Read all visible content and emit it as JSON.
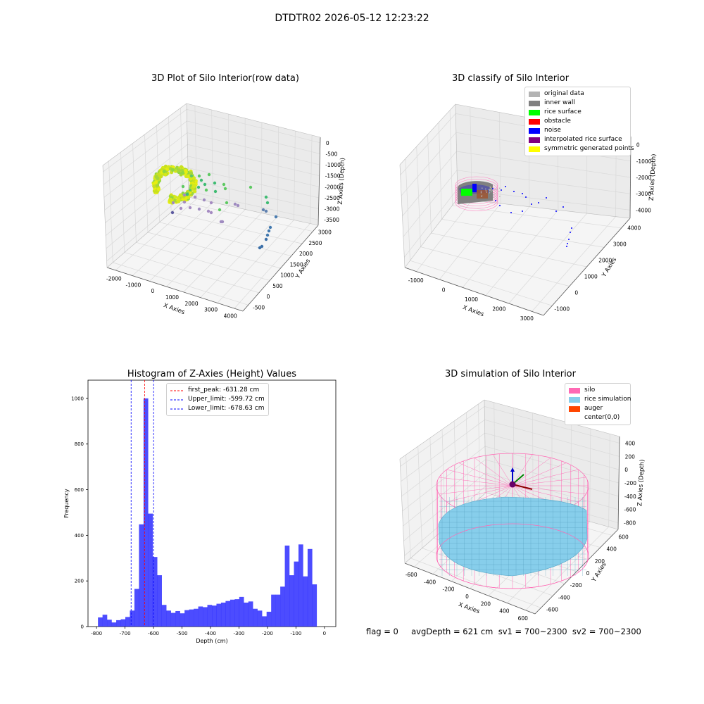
{
  "suptitle": "DTDTR02 2026-05-12 12:23:22",
  "footer": "flag = 0     avgDepth = 621 cm  sv1 = 700~2300  sv2 = 700~2300",
  "chart_data": [
    {
      "type": "scatter",
      "title": "3D Plot of Silo Interior(row data)",
      "xlabel": "X Axies",
      "ylabel": "Y Axies",
      "zlabel": "Z Axies (Depth)",
      "x_ticks": [
        "-2000",
        "-1000",
        "0",
        "1000",
        "2000",
        "3000",
        "4000"
      ],
      "y_ticks": [
        "-500",
        "0",
        "500",
        "1000",
        "1500",
        "2000",
        "2500",
        "3000"
      ],
      "z_ticks": [
        "0",
        "-500",
        "-1000",
        "-1500",
        "-2000",
        "-2500",
        "-3000",
        "-3500"
      ],
      "xlim": [
        -2300,
        4100
      ],
      "ylim": [
        -700,
        3200
      ],
      "zlim": [
        -3700,
        100
      ],
      "grid": true
    },
    {
      "type": "scatter",
      "title": "3D classify of Silo Interior",
      "xlabel": "X Axies",
      "ylabel": "Y Axies",
      "zlabel": "Z Axies (Depth)",
      "x_ticks": [
        "-1000",
        "0",
        "1000",
        "2000",
        "3000"
      ],
      "y_ticks": [
        "-1000",
        "0",
        "1000",
        "2000",
        "3000",
        "4000"
      ],
      "z_ticks": [
        "0",
        "-1000",
        "-2000",
        "-3000",
        "-4000"
      ],
      "legend": [
        {
          "label": "original data",
          "color": "#b3b3b3"
        },
        {
          "label": "inner wall",
          "color": "#808080"
        },
        {
          "label": "rice surface",
          "color": "#00ff00"
        },
        {
          "label": "obstacle",
          "color": "#ff0000"
        },
        {
          "label": "noise",
          "color": "#0000ff"
        },
        {
          "label": "interpolated rice surface",
          "color": "#800080"
        },
        {
          "label": "symmetric generated points",
          "color": "#ffff00"
        }
      ],
      "legend_position": "top-right",
      "grid": true
    },
    {
      "type": "bar",
      "title": "Histogram of Z-Axies (Height) Values",
      "xlabel": "Depth (cm)",
      "ylabel": "Frequency",
      "xlim": [
        -830,
        40
      ],
      "ylim": [
        0,
        1080
      ],
      "x_ticks": [
        -800,
        -700,
        -600,
        -500,
        -400,
        -300,
        -200,
        -100,
        0
      ],
      "y_ticks": [
        0,
        200,
        400,
        600,
        800,
        1000
      ],
      "bar_color": "#0000ff",
      "bin_start": -795,
      "bin_width": 16,
      "values": [
        40,
        52,
        30,
        18,
        28,
        32,
        42,
        70,
        165,
        448,
        1000,
        495,
        305,
        225,
        95,
        70,
        60,
        68,
        58,
        72,
        75,
        78,
        88,
        85,
        95,
        92,
        100,
        105,
        112,
        118,
        120,
        130,
        105,
        110,
        78,
        70,
        45,
        65,
        140,
        140,
        175,
        355,
        225,
        285,
        360,
        220,
        340,
        185
      ],
      "vlines": [
        {
          "label": "first_peak: -631.28 cm",
          "x": -631.28,
          "color": "#ff0000"
        },
        {
          "label": "Upper_limit: -599.72 cm",
          "x": -599.72,
          "color": "#0000ff"
        },
        {
          "label": "Lower_limit: -678.63 cm",
          "x": -678.63,
          "color": "#0000ff"
        }
      ],
      "legend_position": "top-center"
    },
    {
      "type": "surface",
      "title": "3D simulation of Silo Interior",
      "xlabel": "X Axies",
      "ylabel": "Y Axies",
      "zlabel": "Z Axies (Depth)",
      "x_ticks": [
        "-600",
        "-400",
        "-200",
        "0",
        "200",
        "400",
        "600"
      ],
      "y_ticks": [
        "-600",
        "-400",
        "-200",
        "0",
        "200",
        "400",
        "600"
      ],
      "z_ticks": [
        "400",
        "200",
        "0",
        "-200",
        "-400",
        "-600",
        "-800"
      ],
      "legend": [
        {
          "label": "silo",
          "color": "#ff69b4"
        },
        {
          "label": "rice simulation",
          "color": "#87ceeb"
        },
        {
          "label": "auger",
          "color": "#ff4500"
        },
        {
          "label": "center(0,0)",
          "color": "#ffffff"
        }
      ],
      "legend_position": "top-right",
      "grid": true
    }
  ]
}
